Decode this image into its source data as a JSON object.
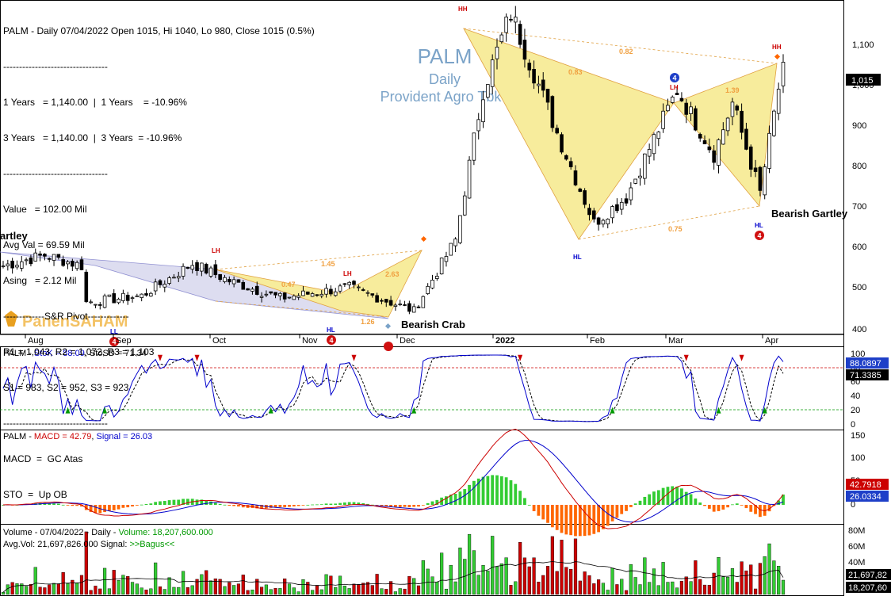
{
  "header": {
    "title": "PALM - Daily 07/04/2022 Open 1015, Hi 1040, Lo 980, Close 1015 (0.5%)"
  },
  "info_panel": {
    "lines": [
      "---------------------------------",
      "1 Years   = 1,140.00  |  1 Years    = -10.96%",
      "3 Years   = 1,140.00  |  3 Years  = -10.96%",
      "---------------------------------",
      "Value   = 102.00 Mil",
      "Avg Val = 69.59 Mil",
      "Asing   = 2.12 Mil",
      "-------------S&R Pivot-------------",
      "R1 = 1,043, R2 = 1,072, R3 = 1,103",
      "S1 = 983, S2 = 952, S3 = 923",
      "---------------------------------",
      "MACD  =  GC Atas",
      "STO  =  Up OB"
    ]
  },
  "watermark": {
    "ticker": "PALM",
    "period": "Daily",
    "company": "Provident Agro Tbk",
    "brand": "PanenSAHAM"
  },
  "annotations": {
    "gartley_left": "artley",
    "bearish_crab": "Bearish Crab",
    "bearish_gartley": "Bearish Gartley",
    "labels": [
      {
        "text": "HH",
        "color": "#cc0000"
      },
      {
        "text": "LH",
        "color": "#cc0000"
      },
      {
        "text": "LH",
        "color": "#cc0000"
      },
      {
        "text": "LH",
        "color": "#cc0000"
      },
      {
        "text": "HH",
        "color": "#cc0000"
      },
      {
        "text": "HL",
        "color": "#0000cc"
      },
      {
        "text": "HL",
        "color": "#0000cc"
      },
      {
        "text": "HL",
        "color": "#0000cc"
      },
      {
        "text": "LL",
        "color": "#0000cc"
      }
    ],
    "ratios": [
      "1.45",
      "0.47",
      "2.63",
      "1.26",
      "0.83",
      "0.82",
      "1.39",
      "0.75"
    ],
    "badge": "4"
  },
  "x_axis": {
    "months": [
      "Aug",
      "Sep",
      "Oct",
      "Nov",
      "Dec",
      "2022",
      "Feb",
      "Mar",
      "Apr"
    ]
  },
  "price_axis": {
    "ticks": [
      "1,100",
      "1,000",
      "900",
      "800",
      "700",
      "600",
      "500",
      "400"
    ],
    "last_label": "1,015"
  },
  "stoch_panel": {
    "prefix": "PALM - ",
    "k_label": "StoK = 88.09",
    "sep": ", ",
    "d_label": "StoSD = 71.34",
    "ticks": [
      "100",
      "80",
      "60",
      "40",
      "20",
      "0"
    ],
    "k_value_label": "88.0897",
    "d_value_label": "71.3385"
  },
  "macd_panel": {
    "prefix": "PALM - ",
    "macd_label": "MACD = 42.79",
    "sep": ", ",
    "signal_label": "Signal = 26.03",
    "ticks": [
      "150",
      "100",
      "50",
      "0"
    ],
    "macd_value_label": "42.7918",
    "signal_value_label": "26.0334"
  },
  "volume_panel": {
    "prefix": "Volume - 07/04/2022 - Daily  - ",
    "volume_label": "Volume: 18,207,600.000",
    "avg_label": "Avg.Vol: 21,697,826.000",
    "signal_prefix": "  Signal: ",
    "signal_value": ">>Bagus<<",
    "ticks": [
      "80M",
      "60M",
      "40M"
    ],
    "avg_value_label": "21,697,82",
    "vol_value_label": "18,207,60"
  },
  "colors": {
    "up": "#ffffff",
    "down": "#000000",
    "stoch_k": "#0000cc",
    "stoch_d": "#000000",
    "macd": "#cc0000",
    "signal": "#0000cc",
    "hist_pos": "#33cc33",
    "hist_neg": "#ff6600",
    "vol_up": "#33cc33",
    "vol_down": "#cc0000",
    "harmonic_fill": "#f7ec9c",
    "crab_fill": "#dcdcf0",
    "watermark": "#7ba3c8"
  },
  "chart_data": [
    {
      "type": "candlestick",
      "title": "PALM - Daily 07/04/2022 Open 1015, Hi 1040, Lo 980, Close 1015 (0.5%)",
      "last": {
        "open": 1015,
        "high": 1040,
        "low": 980,
        "close": 1015
      },
      "ylim": [
        380,
        1160
      ],
      "close_path": [
        {
          "x": "Jul-2021",
          "y": 540
        },
        {
          "x": "Aug-2021",
          "y": 565
        },
        {
          "x": "Aug-2021",
          "y": 540
        },
        {
          "x": "Sep-2021",
          "y": 455
        },
        {
          "x": "Sep-2021",
          "y": 470
        },
        {
          "x": "Oct-2021",
          "y": 545
        },
        {
          "x": "Oct-2021",
          "y": 505
        },
        {
          "x": "Nov-2021",
          "y": 465
        },
        {
          "x": "Nov-2021",
          "y": 490
        },
        {
          "x": "Dec-2021",
          "y": 435
        },
        {
          "x": "Dec-2021",
          "y": 600
        },
        {
          "x": "Dec-2021",
          "y": 950
        },
        {
          "x": "Jan-2022",
          "y": 1130
        },
        {
          "x": "Jan-2022",
          "y": 850
        },
        {
          "x": "Feb-2022",
          "y": 640
        },
        {
          "x": "Feb-2022",
          "y": 700
        },
        {
          "x": "Mar-2022",
          "y": 950
        },
        {
          "x": "Mar-2022",
          "y": 800
        },
        {
          "x": "Mar-2022",
          "y": 920
        },
        {
          "x": "Apr-2022",
          "y": 710
        },
        {
          "x": "Apr-2022",
          "y": 1015
        }
      ]
    },
    {
      "type": "line",
      "name": "Stochastic",
      "ylim": [
        0,
        100
      ],
      "series": [
        {
          "name": "StoK",
          "last": 88.09
        },
        {
          "name": "StoSD",
          "last": 71.34
        }
      ],
      "levels": [
        80,
        20
      ]
    },
    {
      "type": "line",
      "name": "MACD",
      "ylim": [
        -40,
        160
      ],
      "series": [
        {
          "name": "MACD",
          "last": 42.79,
          "peak": 145
        },
        {
          "name": "Signal",
          "last": 26.03,
          "peak": 115
        }
      ]
    },
    {
      "type": "bar",
      "name": "Volume",
      "ylim": [
        0,
        85000000
      ],
      "last_volume": 18207600,
      "avg_volume": 21697826
    }
  ]
}
